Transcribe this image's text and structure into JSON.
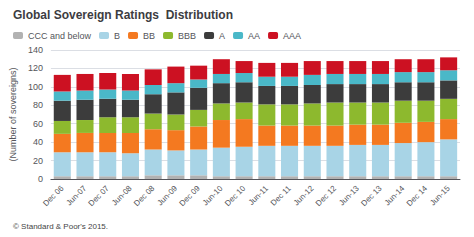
{
  "chart_data": {
    "type": "bar",
    "title": "Global Sovereign Ratings  Distribution",
    "subtitle": "© Standard & Poor's 2015.",
    "ylabel": "(Number of sovereigns)",
    "categories": [
      "Dec 06",
      "Jun-07",
      "Dec 07",
      "Jun-08",
      "Dec 08",
      "Jun-09",
      "Dec 09",
      "Jun-10",
      "Dec 10",
      "Jun-11",
      "Dec 11",
      "Jun-12",
      "Dec 12",
      "Jun-13",
      "Dec 13",
      "Jun-14",
      "Dec 14",
      "Jun-15"
    ],
    "series": [
      {
        "name": "CCC and below",
        "color": "#b2b2b2",
        "values": [
          3,
          3,
          3,
          3,
          4,
          4,
          4,
          3,
          3,
          3,
          3,
          3,
          3,
          3,
          3,
          3,
          3,
          3
        ]
      },
      {
        "name": "B",
        "color": "#a8d4e6",
        "values": [
          26,
          26,
          26,
          25,
          28,
          27,
          28,
          31,
          32,
          33,
          33,
          33,
          33,
          34,
          34,
          36,
          37,
          40
        ]
      },
      {
        "name": "BB",
        "color": "#f47920",
        "values": [
          20,
          21,
          21,
          22,
          22,
          22,
          25,
          30,
          30,
          22,
          22,
          22,
          22,
          22,
          22,
          22,
          22,
          22
        ]
      },
      {
        "name": "BBB",
        "color": "#8db92e",
        "values": [
          14,
          14,
          17,
          17,
          17,
          17,
          18,
          18,
          18,
          23,
          23,
          24,
          25,
          24,
          24,
          24,
          23,
          22
        ]
      },
      {
        "name": "A",
        "color": "#3c3c3c",
        "values": [
          22,
          22,
          20,
          19,
          21,
          24,
          24,
          22,
          22,
          20,
          20,
          20,
          20,
          20,
          20,
          20,
          20,
          20
        ]
      },
      {
        "name": "AA",
        "color": "#4ab8c8",
        "values": [
          10,
          10,
          10,
          10,
          10,
          10,
          9,
          10,
          10,
          10,
          10,
          11,
          11,
          11,
          11,
          11,
          11,
          11
        ]
      },
      {
        "name": "AAA",
        "color": "#cc1122",
        "values": [
          18,
          18,
          18,
          18,
          17,
          18,
          15,
          16,
          13,
          15,
          15,
          15,
          14,
          14,
          14,
          14,
          14,
          14
        ]
      }
    ],
    "ylim": [
      0,
      140
    ],
    "yticks": [
      0,
      20,
      40,
      60,
      80,
      100,
      120,
      140
    ],
    "grid": true,
    "stacked": true,
    "legend": "top"
  }
}
